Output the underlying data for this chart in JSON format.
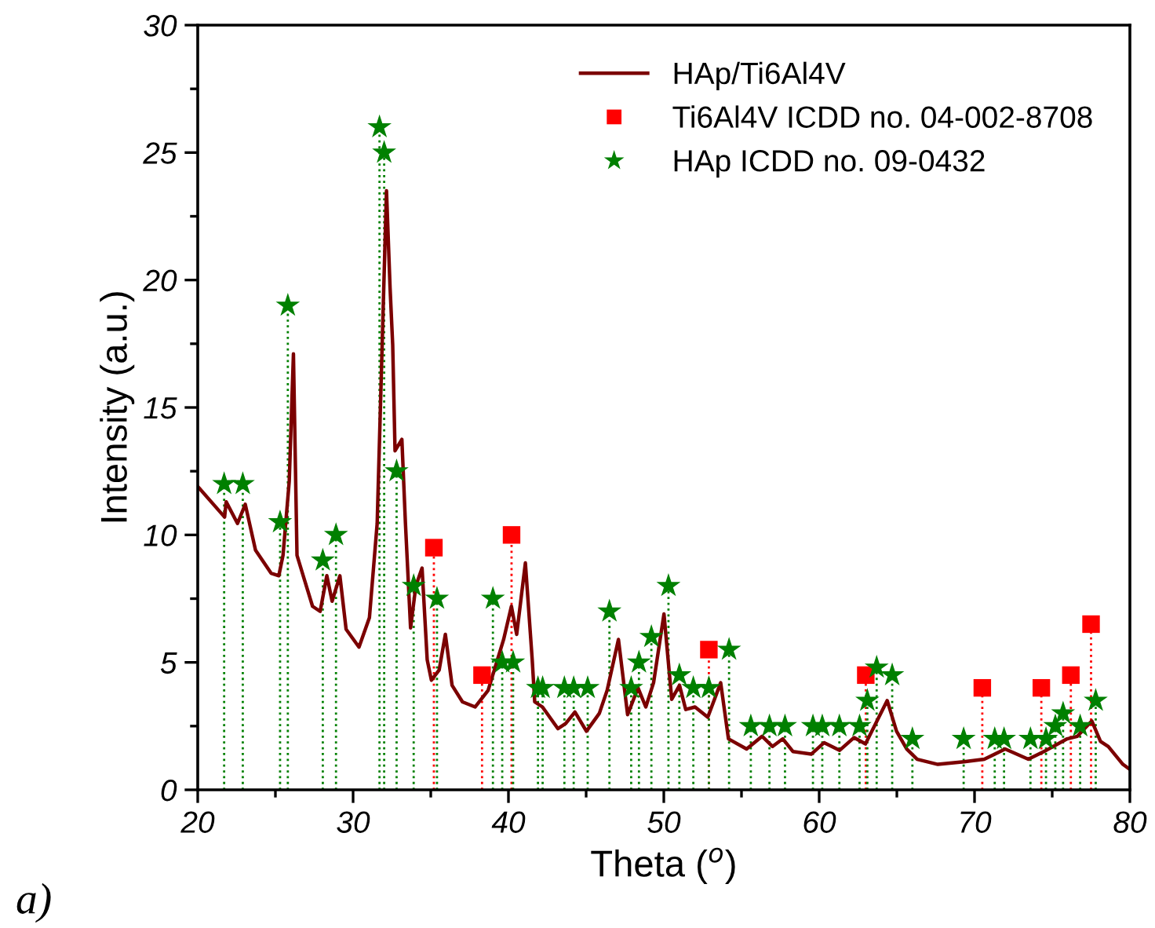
{
  "chart_data": {
    "type": "line",
    "xlabel": "Theta ($^{o}$)",
    "ylabel": "Intensity (a.u.)",
    "xlim": [
      20,
      80
    ],
    "ylim": [
      0,
      30
    ],
    "xticks": [
      20,
      30,
      40,
      50,
      60,
      70,
      80
    ],
    "yticks": [
      0,
      5,
      10,
      15,
      20,
      25,
      30
    ],
    "legend": "top right",
    "grid": false,
    "annotations": [
      "a)"
    ],
    "series": [
      {
        "name": "HAp/Ti6Al4V",
        "color": "#7b0000",
        "marker": "none",
        "line_style": "solid",
        "x": [
          20,
          21.73,
          21.83,
          22.56,
          23.06,
          23.72,
          24.72,
          25.22,
          25.49,
          25.89,
          26.16,
          26.39,
          26.89,
          27.39,
          27.88,
          28.31,
          28.65,
          29.15,
          29.55,
          30.38,
          31.05,
          31.55,
          31.88,
          32.15,
          32.38,
          32.55,
          32.7,
          33.14,
          33.37,
          33.7,
          34.04,
          34.44,
          34.77,
          35.04,
          35.54,
          35.94,
          36.37,
          37.04,
          37.86,
          38.69,
          39.69,
          40.19,
          40.53,
          41.09,
          41.53,
          41.69,
          42.19,
          43.18,
          43.68,
          44.28,
          45.02,
          45.85,
          46.35,
          47.08,
          47.67,
          48.34,
          48.84,
          49.34,
          50.01,
          50.51,
          51.01,
          51.41,
          52.01,
          52.83,
          53.66,
          54.16,
          55.33,
          56.33,
          57.0,
          57.66,
          58.32,
          59.49,
          60.32,
          61.32,
          62.25,
          62.98,
          63.64,
          64.38,
          64.98,
          65.64,
          66.31,
          67.64,
          69.32,
          70.63,
          71.97,
          73.46,
          74.62,
          75.96,
          76.62,
          77.55,
          78.11,
          78.61,
          79.55,
          80
        ],
        "values": [
          11.9,
          10.7,
          11.3,
          10.45,
          11.2,
          9.4,
          8.5,
          8.4,
          9.2,
          12.1,
          17.1,
          9.2,
          8.2,
          7.2,
          7.0,
          8.4,
          7.4,
          8.4,
          6.3,
          5.6,
          6.75,
          10.45,
          17.65,
          23.5,
          19.7,
          17.45,
          13.3,
          13.75,
          10.45,
          6.35,
          8.0,
          8.7,
          5.1,
          4.3,
          4.7,
          6.1,
          4.1,
          3.45,
          3.25,
          3.9,
          5.9,
          7.2,
          6.1,
          8.9,
          5.1,
          3.45,
          3.25,
          2.4,
          2.6,
          3.05,
          2.3,
          3.0,
          3.9,
          5.9,
          2.95,
          4.0,
          3.25,
          4.2,
          6.9,
          3.55,
          4.1,
          3.15,
          3.25,
          2.85,
          4.2,
          2.0,
          1.6,
          2.1,
          1.7,
          2.0,
          1.5,
          1.4,
          1.85,
          1.55,
          2.05,
          1.8,
          2.6,
          3.5,
          2.3,
          1.6,
          1.2,
          1.0,
          1.1,
          1.2,
          1.6,
          1.2,
          1.55,
          2.0,
          2.1,
          2.7,
          1.9,
          1.7,
          1.0,
          0.8
        ]
      },
      {
        "name": "Ti6Al4V ICDD no. 04-002-8708",
        "type": "lollipop",
        "color": "#ff0000",
        "marker": "square",
        "line_style": "dotted",
        "x": [
          35.2,
          38.3,
          40.2,
          52.9,
          63.0,
          70.5,
          74.3,
          76.2,
          77.5
        ],
        "values": [
          9.5,
          4.5,
          10,
          5.5,
          4.5,
          4.0,
          4.0,
          4.5,
          6.5
        ]
      },
      {
        "name": "HAp ICDD no. 09-0432",
        "type": "lollipop",
        "color": "#008000",
        "marker": "star",
        "line_style": "dotted",
        "x": [
          21.7,
          22.9,
          25.3,
          25.8,
          28.05,
          28.9,
          31.7,
          32.0,
          32.8,
          33.9,
          35.4,
          39.0,
          39.6,
          40.3,
          41.9,
          42.2,
          43.6,
          44.2,
          45.1,
          46.5,
          47.9,
          48.4,
          49.2,
          50.3,
          51.0,
          51.9,
          52.9,
          54.2,
          55.6,
          56.8,
          57.8,
          59.6,
          60.2,
          61.3,
          62.6,
          63.1,
          63.7,
          64.7,
          66.0,
          69.3,
          71.3,
          71.9,
          73.6,
          74.6,
          75.2,
          75.7,
          76.8,
          77.8
        ],
        "values": [
          12,
          12,
          10.5,
          19,
          9,
          10,
          26,
          25,
          12.5,
          8,
          7.5,
          7.5,
          5,
          5,
          4,
          4,
          4,
          4,
          4,
          7,
          4,
          5,
          6,
          8,
          4.5,
          4,
          4,
          5.5,
          2.5,
          2.5,
          2.5,
          2.5,
          2.5,
          2.5,
          2.5,
          3.5,
          4.8,
          4.5,
          2,
          2,
          2,
          2,
          2,
          2,
          2.5,
          3,
          2.5,
          3.5
        ]
      }
    ]
  }
}
